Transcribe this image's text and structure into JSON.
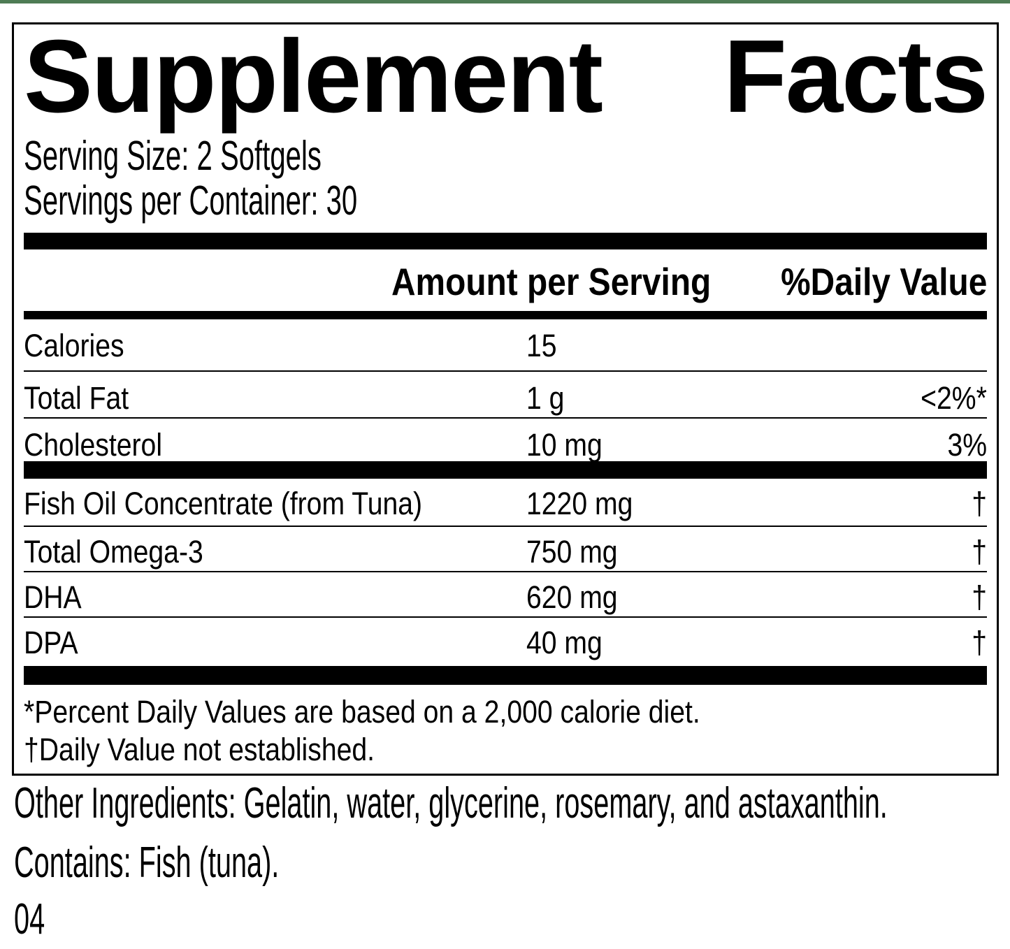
{
  "label": {
    "title_word_left": "Supplement",
    "title_word_right": "Facts",
    "serving_size": "Serving Size: 2 Softgels",
    "servings_per_container": "Servings per Container: 30",
    "columns": {
      "amount_header": "Amount per Serving",
      "daily_value_header": "%Daily Value"
    },
    "rows_main": [
      {
        "name": "Calories",
        "amount": "15",
        "dv": ""
      },
      {
        "name": "Total Fat",
        "amount": "1 g",
        "dv": "<2%*"
      },
      {
        "name": "Cholesterol",
        "amount": "10 mg",
        "dv": "3%"
      }
    ],
    "rows_supplement": [
      {
        "name": "Fish Oil Concentrate (from Tuna)",
        "amount": "1220 mg",
        "dv": "†"
      },
      {
        "name": "Total Omega-3",
        "amount": "750 mg",
        "dv": "†"
      },
      {
        "name": "DHA",
        "amount": "620 mg",
        "dv": "†"
      },
      {
        "name": "DPA",
        "amount": "40 mg",
        "dv": "†"
      }
    ],
    "footnotes": [
      "*Percent Daily Values are based on a 2,000 calorie diet.",
      "†Daily Value not established."
    ],
    "other_ingredients": "Other Ingredients: Gelatin, water, glycerine, rosemary, and astaxanthin.",
    "contains": "Contains: Fish (tuna).",
    "item_code": "04",
    "colors": {
      "accent_green": "#4e7c55",
      "text": "#000000",
      "background": "#ffffff"
    }
  }
}
